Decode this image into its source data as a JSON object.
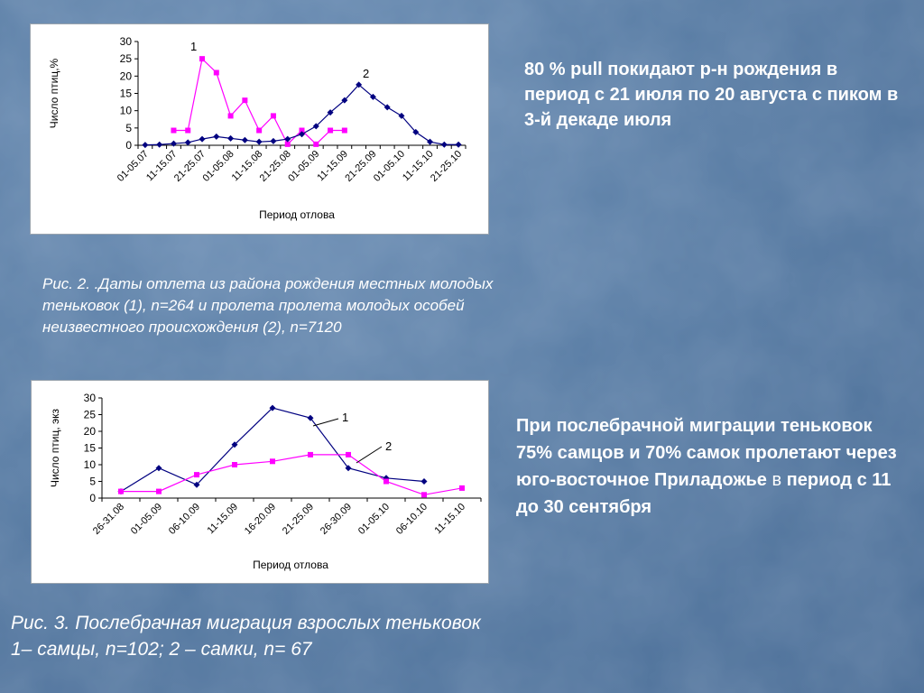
{
  "chart_data": [
    {
      "type": "line",
      "xlabel": "Период отлова",
      "ylabel": "Число птиц,%",
      "ylim": [
        0,
        30
      ],
      "yticks": [
        0,
        5,
        10,
        15,
        20,
        25,
        30
      ],
      "grid": false,
      "x_tick_labels": [
        "01-05.07",
        "11-15.07",
        "21-25.07",
        "01-05.08",
        "11-15.08",
        "21-25.08",
        "01-05.09",
        "11-15.09",
        "21-25.09",
        "01-05.10",
        "11-15.10",
        "21-25.10"
      ],
      "n_points": 23,
      "series": [
        {
          "name": "1",
          "color": "#ff00ff",
          "marker": "square",
          "values": [
            null,
            null,
            4.3,
            4.3,
            25,
            21,
            8.5,
            13,
            4.3,
            8.5,
            0.3,
            4.3,
            0.3,
            4.3,
            4.3,
            null,
            null,
            null,
            null,
            null,
            null,
            null,
            null
          ]
        },
        {
          "name": "2",
          "color": "#000080",
          "marker": "diamond",
          "values": [
            0.1,
            0.2,
            0.5,
            0.8,
            1.8,
            2.5,
            2,
            1.5,
            1,
            1.2,
            1.8,
            3.2,
            5.5,
            9.5,
            13,
            17.5,
            14,
            11,
            8.5,
            3.8,
            1,
            0.2,
            0.2
          ]
        }
      ]
    },
    {
      "type": "line",
      "xlabel": "Период отлова",
      "ylabel": "Число птиц, экз",
      "ylim": [
        0,
        30
      ],
      "yticks": [
        0,
        5,
        10,
        15,
        20,
        25,
        30
      ],
      "grid": false,
      "x_tick_labels": [
        "26-31.08",
        "01-05.09",
        "06-10.09",
        "11-15.09",
        "16-20.09",
        "21-25.09",
        "26-30.09",
        "01-05.10",
        "06-10.10",
        "11-15.10"
      ],
      "n_points": 10,
      "series": [
        {
          "name": "1",
          "color": "#000080",
          "marker": "diamond",
          "values": [
            2,
            9,
            4,
            16,
            27,
            24,
            9,
            6,
            5,
            null
          ]
        },
        {
          "name": "2",
          "color": "#ff00ff",
          "marker": "square",
          "values": [
            2,
            2,
            7,
            10,
            11,
            13,
            13,
            5,
            1,
            3
          ]
        }
      ]
    }
  ],
  "caption1": "Рис. 2. .Даты отлета из района рождения местных молодых теньковок (1), n=264 и пролета пролета молодых особей неизвестного  происхождения (2), n=7120",
  "caption2_line1": "Рис. 3. Послебрачная миграция взрослых теньковок",
  "caption2_line2": "1– самцы, n=102;  2 – самки, n= 67",
  "note1": "80 % pull покидают р-н рождения в период с 21 июля по 20 августа с пиком в 3-й декаде июля",
  "note2_bold": "При послебрачной миграции теньковок 75% самцов и 70% самок пролетают через юго-восточное Приладожье",
  "note2_normal": " в",
  "note2_bold_end": " период с 11 до 30 сентября"
}
